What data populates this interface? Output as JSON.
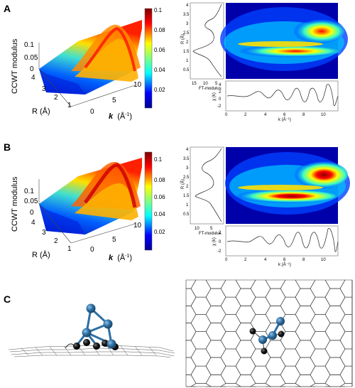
{
  "panels": {
    "A": {
      "letter": "A",
      "surface": {
        "z_label": "CCWT modulus",
        "r_label": "R (Å)",
        "k_label_main": "k",
        "k_label_unit": "(Å",
        "k_label_exp": "-1",
        "k_label_close": ")",
        "z_ticks": [
          "0.1",
          "0.05",
          "0"
        ],
        "r_ticks": [
          "4",
          "3",
          "2",
          "1"
        ],
        "k_ticks": [
          "0",
          "5",
          "10"
        ]
      },
      "colorbar": {
        "ticks": [
          "0.1",
          "0.08",
          "0.06",
          "0.04",
          "0.02"
        ]
      },
      "ft": {
        "xlabel": "FT-modulus",
        "ylabel": "R (Å)",
        "x_ticks": [
          "15",
          "10",
          "5"
        ],
        "y_ticks": [
          "4",
          "3.5",
          "3",
          "2.5",
          "2",
          "1.5",
          "1",
          "0.5"
        ]
      },
      "chi": {
        "xlabel": "k (Å⁻¹)",
        "ylabel": "χ (k)",
        "x_ticks": [
          "0",
          "2",
          "4",
          "6",
          "8",
          "10"
        ],
        "y_ticks": [
          "4",
          "2",
          "0",
          "-2"
        ]
      }
    },
    "B": {
      "letter": "B",
      "surface": {
        "z_label": "CCWT modulus",
        "r_label": "R (Å)",
        "k_label_main": "k",
        "k_label_unit": "(Å",
        "k_label_exp": "-1",
        "k_label_close": ")",
        "z_ticks": [
          "0.1",
          "0.05",
          "0"
        ],
        "r_ticks": [
          "4",
          "3",
          "2",
          "1"
        ],
        "k_ticks": [
          "0",
          "5",
          "10"
        ]
      },
      "colorbar": {
        "ticks": [
          "0.1",
          "0.08",
          "0.06",
          "0.04",
          "0.02"
        ]
      },
      "ft": {
        "xlabel": "FT-modulus",
        "ylabel": "R (Å)",
        "x_ticks": [
          "10",
          "5"
        ],
        "y_ticks": [
          "4",
          "3.5",
          "3",
          "2.5",
          "2",
          "1.5",
          "1",
          "0.5"
        ]
      },
      "chi": {
        "xlabel": "k (Å⁻¹)",
        "ylabel": "χ (k)",
        "x_ticks": [
          "0",
          "2",
          "4",
          "6",
          "8",
          "10"
        ],
        "y_ticks": [
          "2",
          "0",
          "-2"
        ]
      }
    },
    "C": {
      "letter": "C"
    }
  },
  "colors": {
    "metal_atom": "#2e6fa3",
    "carbon_atom": "#111111",
    "lattice": "#333333",
    "jet": [
      "#00008f",
      "#0000ff",
      "#0080ff",
      "#00ffff",
      "#80ff80",
      "#ffff00",
      "#ff8000",
      "#ff0000",
      "#800000"
    ]
  },
  "chart_data": [
    {
      "type": "heatmap",
      "panel": "A",
      "xlabel": "k (Å⁻¹)",
      "ylabel": "R (Å)",
      "xlim": [
        0,
        11.5
      ],
      "ylim": [
        0,
        4
      ],
      "peaks": [
        {
          "k": 9.0,
          "R": 2.45,
          "intensity": 0.09
        },
        {
          "k": 6.2,
          "R": 1.6,
          "intensity": 0.1
        },
        {
          "k": 6.5,
          "R": 1.9,
          "intensity": 0.07
        }
      ]
    },
    {
      "type": "line",
      "panel": "A",
      "xlabel": "FT-modulus",
      "ylabel": "R (Å)",
      "peaks": [
        {
          "R": 1.55,
          "FT": 13
        },
        {
          "R": 2.45,
          "FT": 8
        },
        {
          "R": 3.3,
          "FT": 3
        }
      ]
    },
    {
      "type": "heatmap",
      "panel": "B",
      "xlabel": "k (Å⁻¹)",
      "ylabel": "R (Å)",
      "xlim": [
        0,
        11.5
      ],
      "ylim": [
        0,
        4
      ],
      "peaks": [
        {
          "k": 8.8,
          "R": 2.35,
          "intensity": 0.11
        },
        {
          "k": 6.0,
          "R": 1.55,
          "intensity": 0.11
        },
        {
          "k": 6.5,
          "R": 1.95,
          "intensity": 0.07
        }
      ]
    },
    {
      "type": "line",
      "panel": "B",
      "xlabel": "FT-modulus",
      "ylabel": "R (Å)",
      "peaks": [
        {
          "R": 1.5,
          "FT": 11
        },
        {
          "R": 2.35,
          "FT": 8
        },
        {
          "R": 3.2,
          "FT": 2
        }
      ]
    }
  ]
}
